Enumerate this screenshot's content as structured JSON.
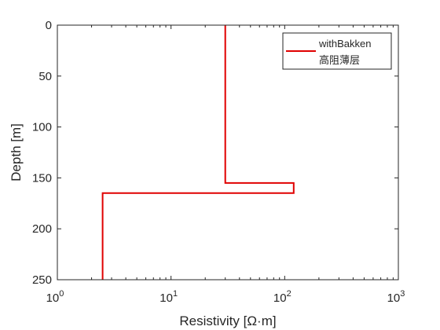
{
  "chart_data": {
    "type": "line",
    "x_scale": "log",
    "y_direction": "reversed",
    "xlim": [
      1,
      1000
    ],
    "ylim": [
      0,
      250
    ],
    "xlabel": "Resistivity [Ω·m]",
    "ylabel": "Depth [m]",
    "x_ticks": [
      {
        "base": "10",
        "exp": "0",
        "value": 1
      },
      {
        "base": "10",
        "exp": "1",
        "value": 10
      },
      {
        "base": "10",
        "exp": "2",
        "value": 100
      },
      {
        "base": "10",
        "exp": "3",
        "value": 1000
      }
    ],
    "y_ticks": [
      0,
      50,
      100,
      150,
      200,
      250
    ],
    "grid": false,
    "legend_position": "top-right",
    "series": [
      {
        "name": "withBakken",
        "subtitle": "高阻薄层",
        "color": "#e00000",
        "points": [
          {
            "x": 30,
            "y": 0
          },
          {
            "x": 30,
            "y": 155
          },
          {
            "x": 120,
            "y": 155
          },
          {
            "x": 120,
            "y": 165
          },
          {
            "x": 2.5,
            "y": 165
          },
          {
            "x": 2.5,
            "y": 250
          }
        ]
      }
    ]
  }
}
